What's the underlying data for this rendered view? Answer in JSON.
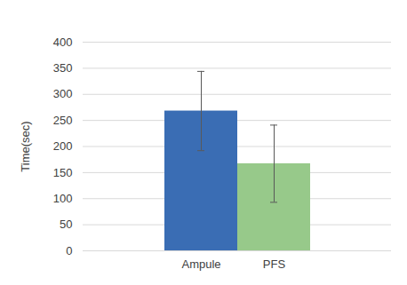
{
  "chart_data": {
    "type": "bar",
    "y_label": "Time(sec)",
    "categories": [
      "Ampule",
      "PFS"
    ],
    "values": [
      268,
      167
    ],
    "errors": [
      76,
      74
    ],
    "colors": [
      "#3a6db4",
      "#97c98a"
    ],
    "ylim": [
      0,
      400
    ],
    "yticks": [
      0,
      50,
      100,
      150,
      200,
      250,
      300,
      350,
      400
    ],
    "grid": true
  }
}
